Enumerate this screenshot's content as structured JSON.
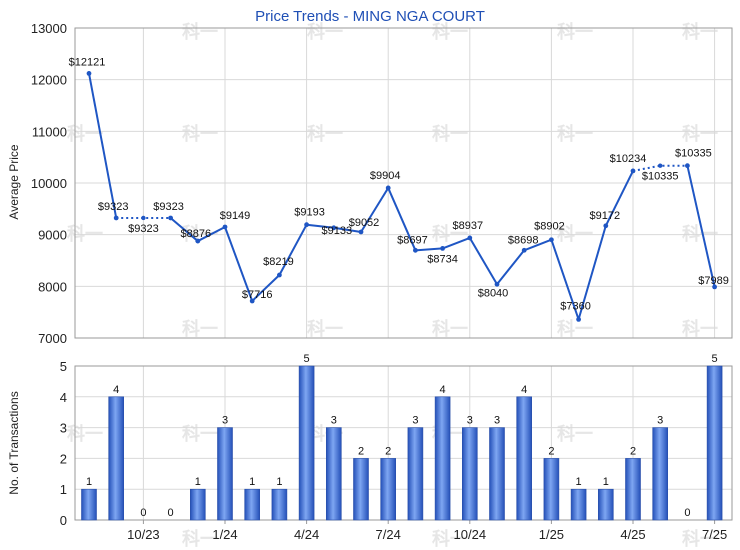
{
  "chart_data": [
    {
      "type": "line",
      "title": "Price Trends - MING NGA COURT",
      "ylabel": "Average Price",
      "ylim": [
        7000,
        13000
      ],
      "yticks": [
        7000,
        8000,
        9000,
        10000,
        11000,
        12000,
        13000
      ],
      "grid": true,
      "x": [
        "2023-08",
        "2023-09",
        "2023-10",
        "2023-11",
        "2023-12",
        "2024-01",
        "2024-02",
        "2024-03",
        "2024-04",
        "2024-05",
        "2024-06",
        "2024-07",
        "2024-08",
        "2024-09",
        "2024-10",
        "2024-11",
        "2024-12",
        "2025-01",
        "2025-02",
        "2025-03",
        "2025-04",
        "2025-05",
        "2025-06",
        "2025-07"
      ],
      "values": [
        12121,
        9323,
        null,
        9323,
        8876,
        9149,
        7716,
        8219,
        9193,
        9133,
        9052,
        9904,
        8697,
        8734,
        8937,
        8040,
        8698,
        8902,
        7360,
        9172,
        10234,
        null,
        10335,
        7989
      ],
      "interpolated": [
        {
          "x": "2023-10",
          "value": 9323,
          "label": "$9323"
        },
        {
          "x": "2025-05",
          "value": 10335,
          "label": "$10335"
        }
      ],
      "labels": [
        "$12121",
        "$9323",
        null,
        "$9323",
        "$8876",
        "$9149",
        "$7716",
        "$8219",
        "$9193",
        "$9133",
        "$9052",
        "$9904",
        "$8697",
        "$8734",
        "$8937",
        "$8040",
        "$8698",
        "$8902",
        "$7360",
        "$9172",
        "$10234",
        null,
        "$10335",
        "$7989"
      ]
    },
    {
      "type": "bar",
      "ylabel": "No. of Transactions",
      "ylim": [
        0,
        5
      ],
      "yticks": [
        0,
        1,
        2,
        3,
        4,
        5
      ],
      "grid": true,
      "x_tick_labels": [
        "10/23",
        "1/24",
        "4/24",
        "7/24",
        "10/24",
        "1/25",
        "4/25",
        "7/25"
      ],
      "x_tick_months": [
        "2023-10",
        "2024-01",
        "2024-04",
        "2024-07",
        "2024-10",
        "2025-01",
        "2025-04",
        "2025-07"
      ],
      "categories": [
        "2023-08",
        "2023-09",
        "2023-10",
        "2023-11",
        "2023-12",
        "2024-01",
        "2024-02",
        "2024-03",
        "2024-04",
        "2024-05",
        "2024-06",
        "2024-07",
        "2024-08",
        "2024-09",
        "2024-10",
        "2024-11",
        "2024-12",
        "2025-01",
        "2025-02",
        "2025-03",
        "2025-04",
        "2025-05",
        "2025-06",
        "2025-07"
      ],
      "values": [
        1,
        4,
        0,
        0,
        1,
        3,
        1,
        1,
        5,
        3,
        2,
        2,
        3,
        4,
        3,
        3,
        4,
        2,
        1,
        1,
        2,
        3,
        0,
        5
      ]
    }
  ],
  "colors": {
    "line": "#1f56c4",
    "bar_light": "#7ea6f2",
    "bar_dark": "#2450b8",
    "grid": "#d9d9d9",
    "title": "#1f4fb5"
  },
  "watermark": "科一"
}
